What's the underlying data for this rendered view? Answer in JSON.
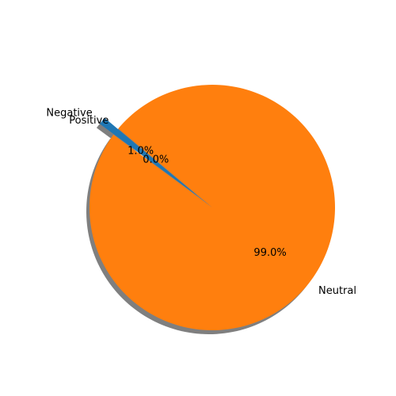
{
  "chart_data": {
    "type": "pie",
    "labels": [
      "Positive",
      "Negative",
      "Neutral"
    ],
    "values": [
      0.0,
      1.0,
      99.0
    ],
    "percent_labels": [
      "0.0%",
      "1.0%",
      "99.0%"
    ],
    "colors": [
      "#2ca02c",
      "#1f77b4",
      "#ff7f0e"
    ],
    "exploded": [
      "Negative"
    ],
    "shadow": true,
    "start_angle_degrees": 140,
    "legend": "none",
    "title": ""
  }
}
